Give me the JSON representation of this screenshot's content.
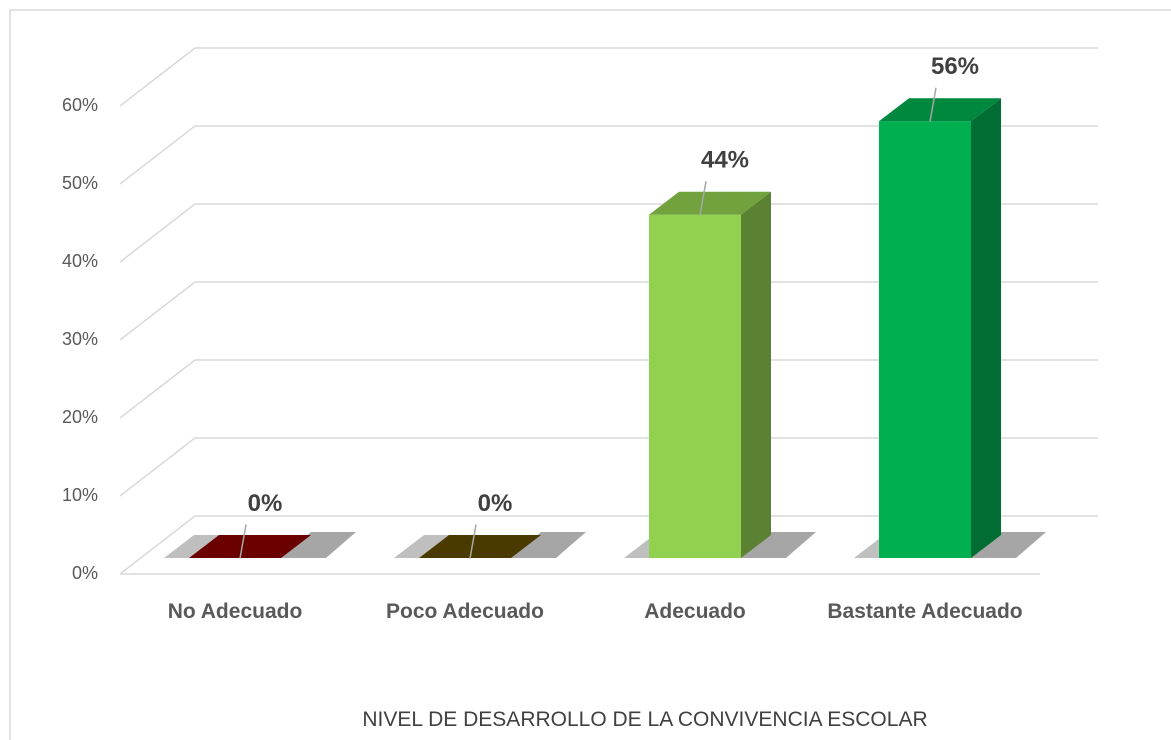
{
  "chart_data": {
    "type": "bar3d",
    "x_label": "NIVEL DE DESARROLLO DE LA CONVIVENCIA ESCOLAR",
    "categories": [
      "No Adecuado",
      "Poco Adecuado",
      "Adecuado",
      "Bastante Adecuado"
    ],
    "values": [
      0,
      0,
      44,
      56
    ],
    "value_labels": [
      "0%",
      "0%",
      "44%",
      "56%"
    ],
    "colors": [
      "#6b0000",
      "#4a3a00",
      "#92d050",
      "#00b050"
    ],
    "ylim": [
      0,
      60
    ],
    "yticks": [
      {
        "value": 0,
        "label": "0%"
      },
      {
        "value": 10,
        "label": "10%"
      },
      {
        "value": 20,
        "label": "20%"
      },
      {
        "value": 30,
        "label": "30%"
      },
      {
        "value": 40,
        "label": "40%"
      },
      {
        "value": 50,
        "label": "50%"
      },
      {
        "value": 60,
        "label": "60%"
      }
    ],
    "grid": true
  }
}
